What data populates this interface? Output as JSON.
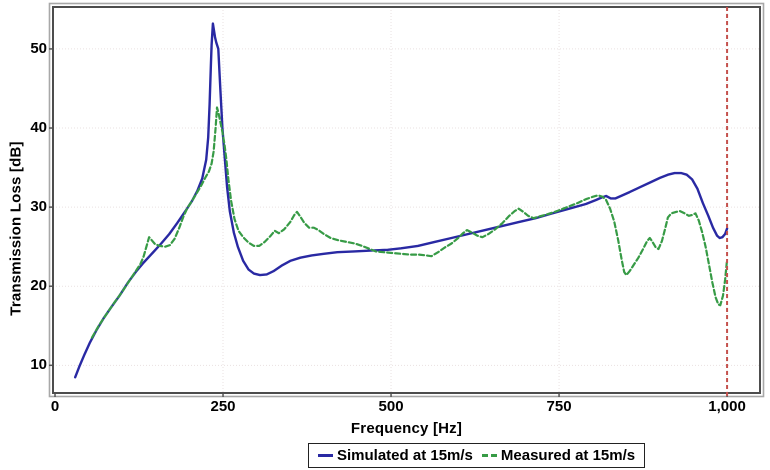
{
  "chart_data": {
    "type": "line",
    "title": "",
    "xlabel": "Frequency [Hz]",
    "ylabel": "Transmission Loss [dB]",
    "xlim": [
      -3,
      1049
    ],
    "ylim": [
      6.5,
      55.3
    ],
    "grid": "dotted light gridlines on",
    "legend_position": "bottom-center boxed",
    "x_ticks": [
      {
        "value": 0,
        "label": "0"
      },
      {
        "value": 250,
        "label": "250"
      },
      {
        "value": 500,
        "label": "500"
      },
      {
        "value": 750,
        "label": "750"
      },
      {
        "value": 1000,
        "label": "1,000"
      }
    ],
    "y_ticks": [
      {
        "value": 10,
        "label": "10"
      },
      {
        "value": 20,
        "label": "20"
      },
      {
        "value": 30,
        "label": "30"
      },
      {
        "value": 40,
        "label": "40"
      },
      {
        "value": 50,
        "label": "50"
      }
    ],
    "reference_line": {
      "x": 1000,
      "color": "#c4514d",
      "style": "dashed"
    },
    "series": [
      {
        "name": "Simulated at 15m/s",
        "color": "#2929a3",
        "style": "solid",
        "points": [
          [
            30,
            8.5
          ],
          [
            36,
            9.8
          ],
          [
            44,
            11.4
          ],
          [
            52,
            12.9
          ],
          [
            62,
            14.5
          ],
          [
            72,
            15.9
          ],
          [
            84,
            17.4
          ],
          [
            96,
            18.8
          ],
          [
            108,
            20.4
          ],
          [
            120,
            21.8
          ],
          [
            132,
            23.0
          ],
          [
            145,
            24.2
          ],
          [
            158,
            25.4
          ],
          [
            170,
            26.6
          ],
          [
            182,
            28.0
          ],
          [
            194,
            29.5
          ],
          [
            204,
            30.8
          ],
          [
            212,
            32.1
          ],
          [
            219,
            33.6
          ],
          [
            225,
            36.0
          ],
          [
            228,
            38.8
          ],
          [
            230,
            43.0
          ],
          [
            232,
            48.0
          ],
          [
            233,
            50.5
          ],
          [
            235,
            53.2
          ],
          [
            238,
            51.5
          ],
          [
            240,
            50.8
          ],
          [
            243,
            50.0
          ],
          [
            246,
            45.0
          ],
          [
            249,
            40.0
          ],
          [
            252,
            36.8
          ],
          [
            256,
            32.5
          ],
          [
            260,
            29.5
          ],
          [
            266,
            26.8
          ],
          [
            272,
            25.0
          ],
          [
            280,
            23.2
          ],
          [
            288,
            22.1
          ],
          [
            296,
            21.6
          ],
          [
            305,
            21.4
          ],
          [
            315,
            21.5
          ],
          [
            325,
            21.9
          ],
          [
            337,
            22.6
          ],
          [
            350,
            23.2
          ],
          [
            365,
            23.6
          ],
          [
            382,
            23.9
          ],
          [
            400,
            24.1
          ],
          [
            420,
            24.3
          ],
          [
            445,
            24.4
          ],
          [
            470,
            24.5
          ],
          [
            495,
            24.6
          ],
          [
            515,
            24.8
          ],
          [
            540,
            25.1
          ],
          [
            565,
            25.6
          ],
          [
            590,
            26.1
          ],
          [
            615,
            26.6
          ],
          [
            640,
            27.1
          ],
          [
            665,
            27.6
          ],
          [
            690,
            28.1
          ],
          [
            715,
            28.6
          ],
          [
            740,
            29.2
          ],
          [
            765,
            29.8
          ],
          [
            790,
            30.4
          ],
          [
            805,
            30.9
          ],
          [
            813,
            31.2
          ],
          [
            820,
            31.4
          ],
          [
            827,
            31.1
          ],
          [
            834,
            31.1
          ],
          [
            842,
            31.4
          ],
          [
            855,
            31.9
          ],
          [
            870,
            32.5
          ],
          [
            885,
            33.1
          ],
          [
            900,
            33.7
          ],
          [
            912,
            34.1
          ],
          [
            922,
            34.3
          ],
          [
            932,
            34.3
          ],
          [
            940,
            34.1
          ],
          [
            948,
            33.5
          ],
          [
            956,
            32.3
          ],
          [
            964,
            30.5
          ],
          [
            972,
            28.9
          ],
          [
            979,
            27.4
          ],
          [
            985,
            26.4
          ],
          [
            989,
            26.1
          ],
          [
            993,
            26.2
          ],
          [
            997,
            26.6
          ],
          [
            1000,
            27.3
          ]
        ]
      },
      {
        "name": "Measured at 15m/s",
        "color": "#379b46",
        "style": "dashed",
        "points": [
          [
            55,
            13.5
          ],
          [
            65,
            15.0
          ],
          [
            76,
            16.4
          ],
          [
            88,
            17.9
          ],
          [
            100,
            19.3
          ],
          [
            110,
            20.6
          ],
          [
            120,
            21.9
          ],
          [
            127,
            22.8
          ],
          [
            132,
            23.8
          ],
          [
            136,
            25.0
          ],
          [
            140,
            26.2
          ],
          [
            144,
            25.8
          ],
          [
            149,
            25.3
          ],
          [
            156,
            25.1
          ],
          [
            164,
            25.0
          ],
          [
            171,
            25.2
          ],
          [
            178,
            26.0
          ],
          [
            185,
            27.4
          ],
          [
            191,
            28.8
          ],
          [
            197,
            29.9
          ],
          [
            204,
            30.8
          ],
          [
            211,
            31.8
          ],
          [
            218,
            32.8
          ],
          [
            224,
            33.8
          ],
          [
            229,
            34.5
          ],
          [
            233,
            35.5
          ],
          [
            236,
            37.0
          ],
          [
            239,
            40.0
          ],
          [
            241,
            42.6
          ],
          [
            243,
            42.0
          ],
          [
            246,
            40.8
          ],
          [
            249,
            39.5
          ],
          [
            252,
            38.0
          ],
          [
            255,
            36.0
          ],
          [
            258,
            33.5
          ],
          [
            262,
            30.8
          ],
          [
            267,
            28.5
          ],
          [
            273,
            27.0
          ],
          [
            280,
            26.2
          ],
          [
            288,
            25.5
          ],
          [
            296,
            25.1
          ],
          [
            304,
            25.1
          ],
          [
            312,
            25.6
          ],
          [
            320,
            26.3
          ],
          [
            327,
            27.0
          ],
          [
            333,
            26.7
          ],
          [
            341,
            27.2
          ],
          [
            350,
            28.1
          ],
          [
            356,
            29.0
          ],
          [
            360,
            29.4
          ],
          [
            365,
            28.8
          ],
          [
            371,
            28.0
          ],
          [
            378,
            27.4
          ],
          [
            385,
            27.4
          ],
          [
            392,
            27.1
          ],
          [
            400,
            26.6
          ],
          [
            410,
            26.1
          ],
          [
            422,
            25.8
          ],
          [
            434,
            25.6
          ],
          [
            446,
            25.4
          ],
          [
            457,
            25.1
          ],
          [
            466,
            24.8
          ],
          [
            477,
            24.4
          ],
          [
            489,
            24.3
          ],
          [
            502,
            24.2
          ],
          [
            515,
            24.1
          ],
          [
            528,
            24.0
          ],
          [
            541,
            24.0
          ],
          [
            552,
            23.9
          ],
          [
            560,
            23.8
          ],
          [
            570,
            24.3
          ],
          [
            580,
            24.9
          ],
          [
            590,
            25.4
          ],
          [
            600,
            26.1
          ],
          [
            607,
            26.7
          ],
          [
            613,
            27.1
          ],
          [
            620,
            26.8
          ],
          [
            628,
            26.4
          ],
          [
            636,
            26.2
          ],
          [
            645,
            26.6
          ],
          [
            655,
            27.2
          ],
          [
            666,
            28.0
          ],
          [
            676,
            28.9
          ],
          [
            684,
            29.5
          ],
          [
            690,
            29.8
          ],
          [
            697,
            29.4
          ],
          [
            704,
            28.9
          ],
          [
            712,
            28.6
          ],
          [
            720,
            28.8
          ],
          [
            733,
            29.1
          ],
          [
            747,
            29.5
          ],
          [
            762,
            30.0
          ],
          [
            777,
            30.5
          ],
          [
            790,
            31.0
          ],
          [
            800,
            31.3
          ],
          [
            808,
            31.5
          ],
          [
            815,
            31.3
          ],
          [
            820,
            30.9
          ],
          [
            826,
            29.8
          ],
          [
            832,
            28.2
          ],
          [
            838,
            25.8
          ],
          [
            843,
            23.4
          ],
          [
            847,
            21.8
          ],
          [
            850,
            21.4
          ],
          [
            855,
            21.9
          ],
          [
            861,
            22.7
          ],
          [
            868,
            23.6
          ],
          [
            875,
            24.7
          ],
          [
            881,
            25.7
          ],
          [
            885,
            26.1
          ],
          [
            889,
            25.6
          ],
          [
            894,
            24.9
          ],
          [
            898,
            24.7
          ],
          [
            903,
            25.7
          ],
          [
            908,
            27.3
          ],
          [
            912,
            28.7
          ],
          [
            917,
            29.2
          ],
          [
            924,
            29.4
          ],
          [
            930,
            29.5
          ],
          [
            937,
            29.2
          ],
          [
            943,
            28.9
          ],
          [
            948,
            29.0
          ],
          [
            953,
            29.2
          ],
          [
            958,
            28.3
          ],
          [
            963,
            26.8
          ],
          [
            968,
            25.0
          ],
          [
            973,
            22.8
          ],
          [
            978,
            20.5
          ],
          [
            983,
            18.6
          ],
          [
            987,
            17.7
          ],
          [
            990,
            17.6
          ],
          [
            994,
            18.8
          ],
          [
            997,
            20.8
          ],
          [
            1000,
            23.4
          ]
        ]
      }
    ],
    "colors": {
      "frame_dark": "#4d4d4d",
      "frame_light": "#a8a8a8",
      "gridline": "#e9e1e1",
      "background": "#ffffff",
      "text": "#000000"
    }
  }
}
